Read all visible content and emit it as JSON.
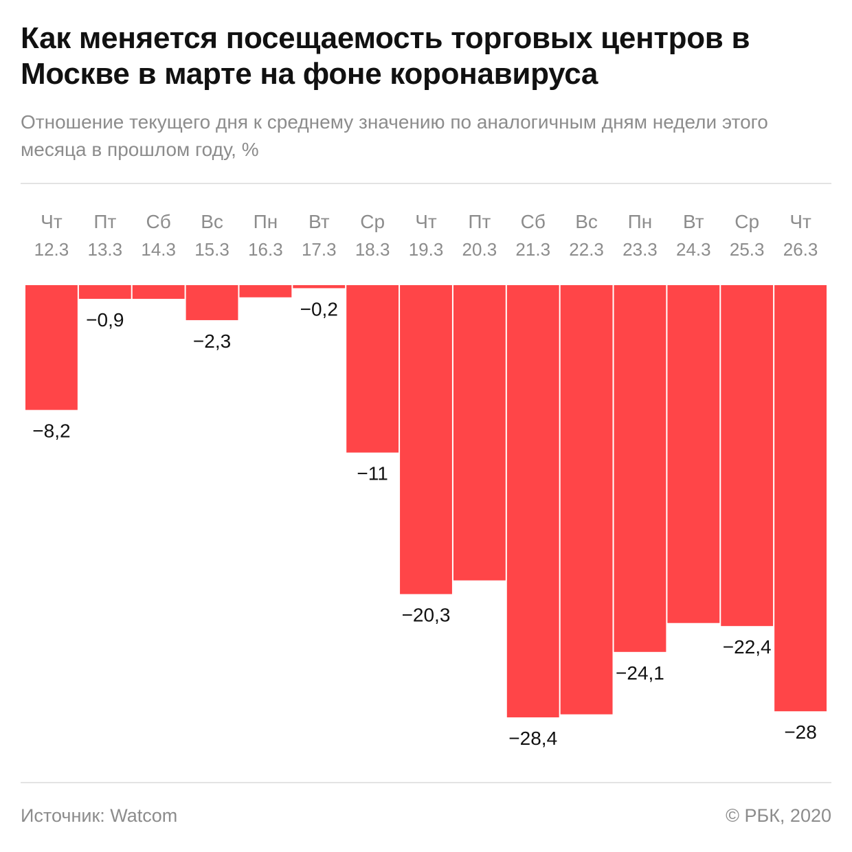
{
  "header": {
    "title": "Как меняется посещаемость торговых центров в Москве в марте на фоне коронавируса",
    "subtitle": "Отношение текущего дня к среднему значению по аналогичным дням недели этого месяца в прошлом году, %"
  },
  "footer": {
    "source": "Источник: Watcom",
    "copyright": "© РБК, 2020"
  },
  "colors": {
    "bar": "#ff4548",
    "text": "#111111",
    "muted": "#8c8c8c"
  },
  "chart_data": {
    "type": "bar",
    "categories": [
      "12.3",
      "13.3",
      "14.3",
      "15.3",
      "16.3",
      "17.3",
      "18.3",
      "19.3",
      "20.3",
      "21.3",
      "22.3",
      "23.3",
      "24.3",
      "25.3",
      "26.3"
    ],
    "weekdays": [
      "Чт",
      "Пт",
      "Сб",
      "Вс",
      "Пн",
      "Вт",
      "Ср",
      "Чт",
      "Пт",
      "Сб",
      "Вс",
      "Пн",
      "Вт",
      "Ср",
      "Чт"
    ],
    "values": [
      -8.2,
      -0.9,
      -0.9,
      -2.3,
      -0.8,
      -0.2,
      -11,
      -20.3,
      -19.4,
      -28.4,
      -28.2,
      -24.1,
      -22.2,
      -22.4,
      -28
    ],
    "data_labels": [
      "−8,2",
      "−0,9",
      "",
      "−2,3",
      "",
      "−0,2",
      "−11",
      "−20,3",
      "",
      "−28,4",
      "",
      "−24,1",
      "",
      "−22,4",
      "−28"
    ],
    "ylim": [
      -28.4,
      0
    ],
    "grid": false,
    "legend": "none"
  }
}
